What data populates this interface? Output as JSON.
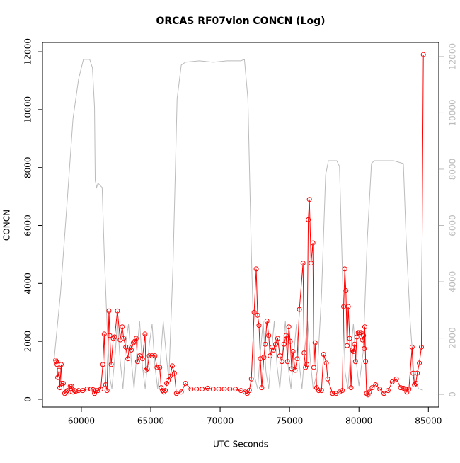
{
  "chart_data": {
    "type": "line",
    "title": "ORCAS RF07vlon CONCN (Log)",
    "x_label": "UTC Seconds",
    "y_label": "CONCN",
    "xlim": [
      57200,
      85750
    ],
    "xticks": [
      60000,
      65000,
      70000,
      75000,
      80000,
      85000
    ],
    "ylim": [
      -270,
      12320
    ],
    "yticks": [
      0,
      2000,
      4000,
      6000,
      8000,
      10000,
      12000
    ],
    "y2lim": [
      -450,
      12500
    ],
    "y2ticks": [
      0,
      2000,
      4000,
      6000,
      8000,
      10000,
      12000
    ],
    "grid": false,
    "series": [
      {
        "color": "#ff0000",
        "axis": "y",
        "markers": true,
        "x": [
          58150,
          58200,
          58250,
          58300,
          58400,
          58450,
          58550,
          58600,
          58700,
          58800,
          58900,
          59000,
          59100,
          59200,
          59300,
          59400,
          59500,
          59600,
          59800,
          60100,
          60400,
          60700,
          60850,
          60950,
          61050,
          61200,
          61400,
          61550,
          61650,
          61750,
          61850,
          61990,
          62050,
          62150,
          62300,
          62400,
          62600,
          62800,
          62950,
          63050,
          63200,
          63350,
          63450,
          63600,
          63750,
          63850,
          63950,
          64050,
          64200,
          64400,
          64590,
          64650,
          64750,
          64900,
          65100,
          65300,
          65450,
          65650,
          65750,
          65850,
          65950,
          66050,
          66150,
          66250,
          66400,
          66550,
          66700,
          66850,
          67200,
          67500,
          67900,
          68300,
          68700,
          69100,
          69500,
          69900,
          70300,
          70700,
          71100,
          71500,
          71800,
          71950,
          72100,
          72250,
          72450,
          72600,
          72700,
          72800,
          72900,
          73000,
          73150,
          73250,
          73370,
          73500,
          73600,
          73750,
          73850,
          74000,
          74150,
          74300,
          74450,
          74600,
          74750,
          74850,
          74950,
          75050,
          75150,
          75250,
          75400,
          75550,
          75710,
          75970,
          76050,
          76150,
          76250,
          76350,
          76430,
          76550,
          76680,
          76750,
          76840,
          76950,
          77100,
          77300,
          77450,
          77650,
          77750,
          78100,
          78350,
          78600,
          78800,
          78900,
          78980,
          79060,
          79150,
          79230,
          79330,
          79430,
          79530,
          79600,
          79680,
          79750,
          79850,
          79950,
          80050,
          80150,
          80250,
          80330,
          80380,
          80420,
          80480,
          80550,
          80650,
          80750,
          80950,
          81200,
          81500,
          81800,
          82100,
          82400,
          82700,
          83000,
          83200,
          83350,
          83450,
          83600,
          83830,
          83900,
          84000,
          84100,
          84200,
          84350,
          84500,
          84640
        ],
        "values": [
          1350,
          1300,
          1200,
          750,
          1000,
          400,
          1200,
          550,
          550,
          200,
          250,
          300,
          250,
          450,
          450,
          250,
          300,
          280,
          300,
          300,
          350,
          350,
          330,
          200,
          300,
          300,
          350,
          1200,
          2250,
          500,
          300,
          3050,
          2200,
          1200,
          2100,
          2150,
          3050,
          2050,
          2500,
          2100,
          1800,
          1400,
          1800,
          1700,
          1950,
          2000,
          2100,
          1300,
          1500,
          1400,
          2250,
          1000,
          1050,
          1500,
          1500,
          1500,
          1100,
          1100,
          400,
          300,
          250,
          300,
          550,
          650,
          800,
          1150,
          900,
          200,
          250,
          550,
          350,
          350,
          350,
          380,
          350,
          350,
          350,
          350,
          350,
          300,
          250,
          200,
          300,
          700,
          3000,
          4500,
          2900,
          2550,
          1400,
          400,
          1450,
          1900,
          2700,
          2200,
          1500,
          1800,
          1700,
          1900,
          2100,
          1500,
          1300,
          1900,
          2200,
          1300,
          2500,
          2000,
          1050,
          1650,
          1000,
          1400,
          3100,
          4700,
          1600,
          1100,
          1200,
          6200,
          6900,
          4700,
          5400,
          1100,
          1950,
          400,
          300,
          300,
          1550,
          1250,
          700,
          200,
          200,
          250,
          300,
          3200,
          4500,
          3750,
          1850,
          3200,
          2100,
          400,
          1700,
          1650,
          1900,
          1300,
          2150,
          2300,
          2300,
          2300,
          2050,
          2200,
          1750,
          2500,
          1300,
          200,
          150,
          250,
          400,
          500,
          350,
          200,
          300,
          600,
          700,
          400,
          380,
          350,
          250,
          350,
          1800,
          900,
          500,
          550,
          900,
          1250,
          1800,
          11900
        ]
      },
      {
        "color": "#bbbbbb",
        "axis": "y2",
        "markers": false,
        "x": [
          58050,
          58500,
          59000,
          59400,
          59800,
          60150,
          60600,
          60800,
          60950,
          61000,
          61100,
          61200,
          61500,
          61650,
          61850,
          62050,
          62200,
          62450,
          62600,
          62800,
          63000,
          63200,
          63400,
          63600,
          63800,
          64000,
          64200,
          64400,
          64600,
          64900,
          65100,
          65300,
          65500,
          65700,
          65900,
          66100,
          66300,
          66600,
          66900,
          67200,
          67500,
          68500,
          69500,
          70500,
          71500,
          71750,
          72000,
          72250,
          72500,
          72700,
          72900,
          73100,
          73300,
          73500,
          73700,
          73900,
          74100,
          74300,
          74500,
          74700,
          74900,
          75100,
          75300,
          75500,
          75700,
          75900,
          76100,
          76300,
          76500,
          76700,
          77000,
          77300,
          77600,
          77800,
          78400,
          78600,
          78800,
          79000,
          79200,
          79400,
          79600,
          79800,
          80000,
          80300,
          80600,
          80900,
          81100,
          82500,
          83200,
          83400,
          83700,
          84000,
          84300,
          84600
        ],
        "values": [
          1300,
          3600,
          7000,
          9800,
          11200,
          11900,
          11900,
          11600,
          10200,
          7600,
          7350,
          7500,
          7350,
          5000,
          2500,
          600,
          200,
          1500,
          2600,
          1200,
          200,
          1800,
          2500,
          1200,
          200,
          1500,
          2600,
          1000,
          200,
          1800,
          2500,
          1000,
          200,
          1200,
          2600,
          1500,
          500,
          4500,
          10500,
          11700,
          11800,
          11850,
          11800,
          11850,
          11850,
          11900,
          10500,
          5000,
          600,
          200,
          1500,
          2600,
          800,
          200,
          1500,
          2600,
          1000,
          200,
          1500,
          2600,
          1000,
          200,
          1400,
          2500,
          1100,
          200,
          1600,
          2600,
          1200,
          200,
          800,
          3500,
          7800,
          8300,
          8300,
          8100,
          4500,
          800,
          200,
          1500,
          2500,
          1200,
          300,
          1500,
          5500,
          8200,
          8300,
          8300,
          8200,
          5500,
          2500,
          500,
          200,
          150
        ]
      }
    ]
  }
}
